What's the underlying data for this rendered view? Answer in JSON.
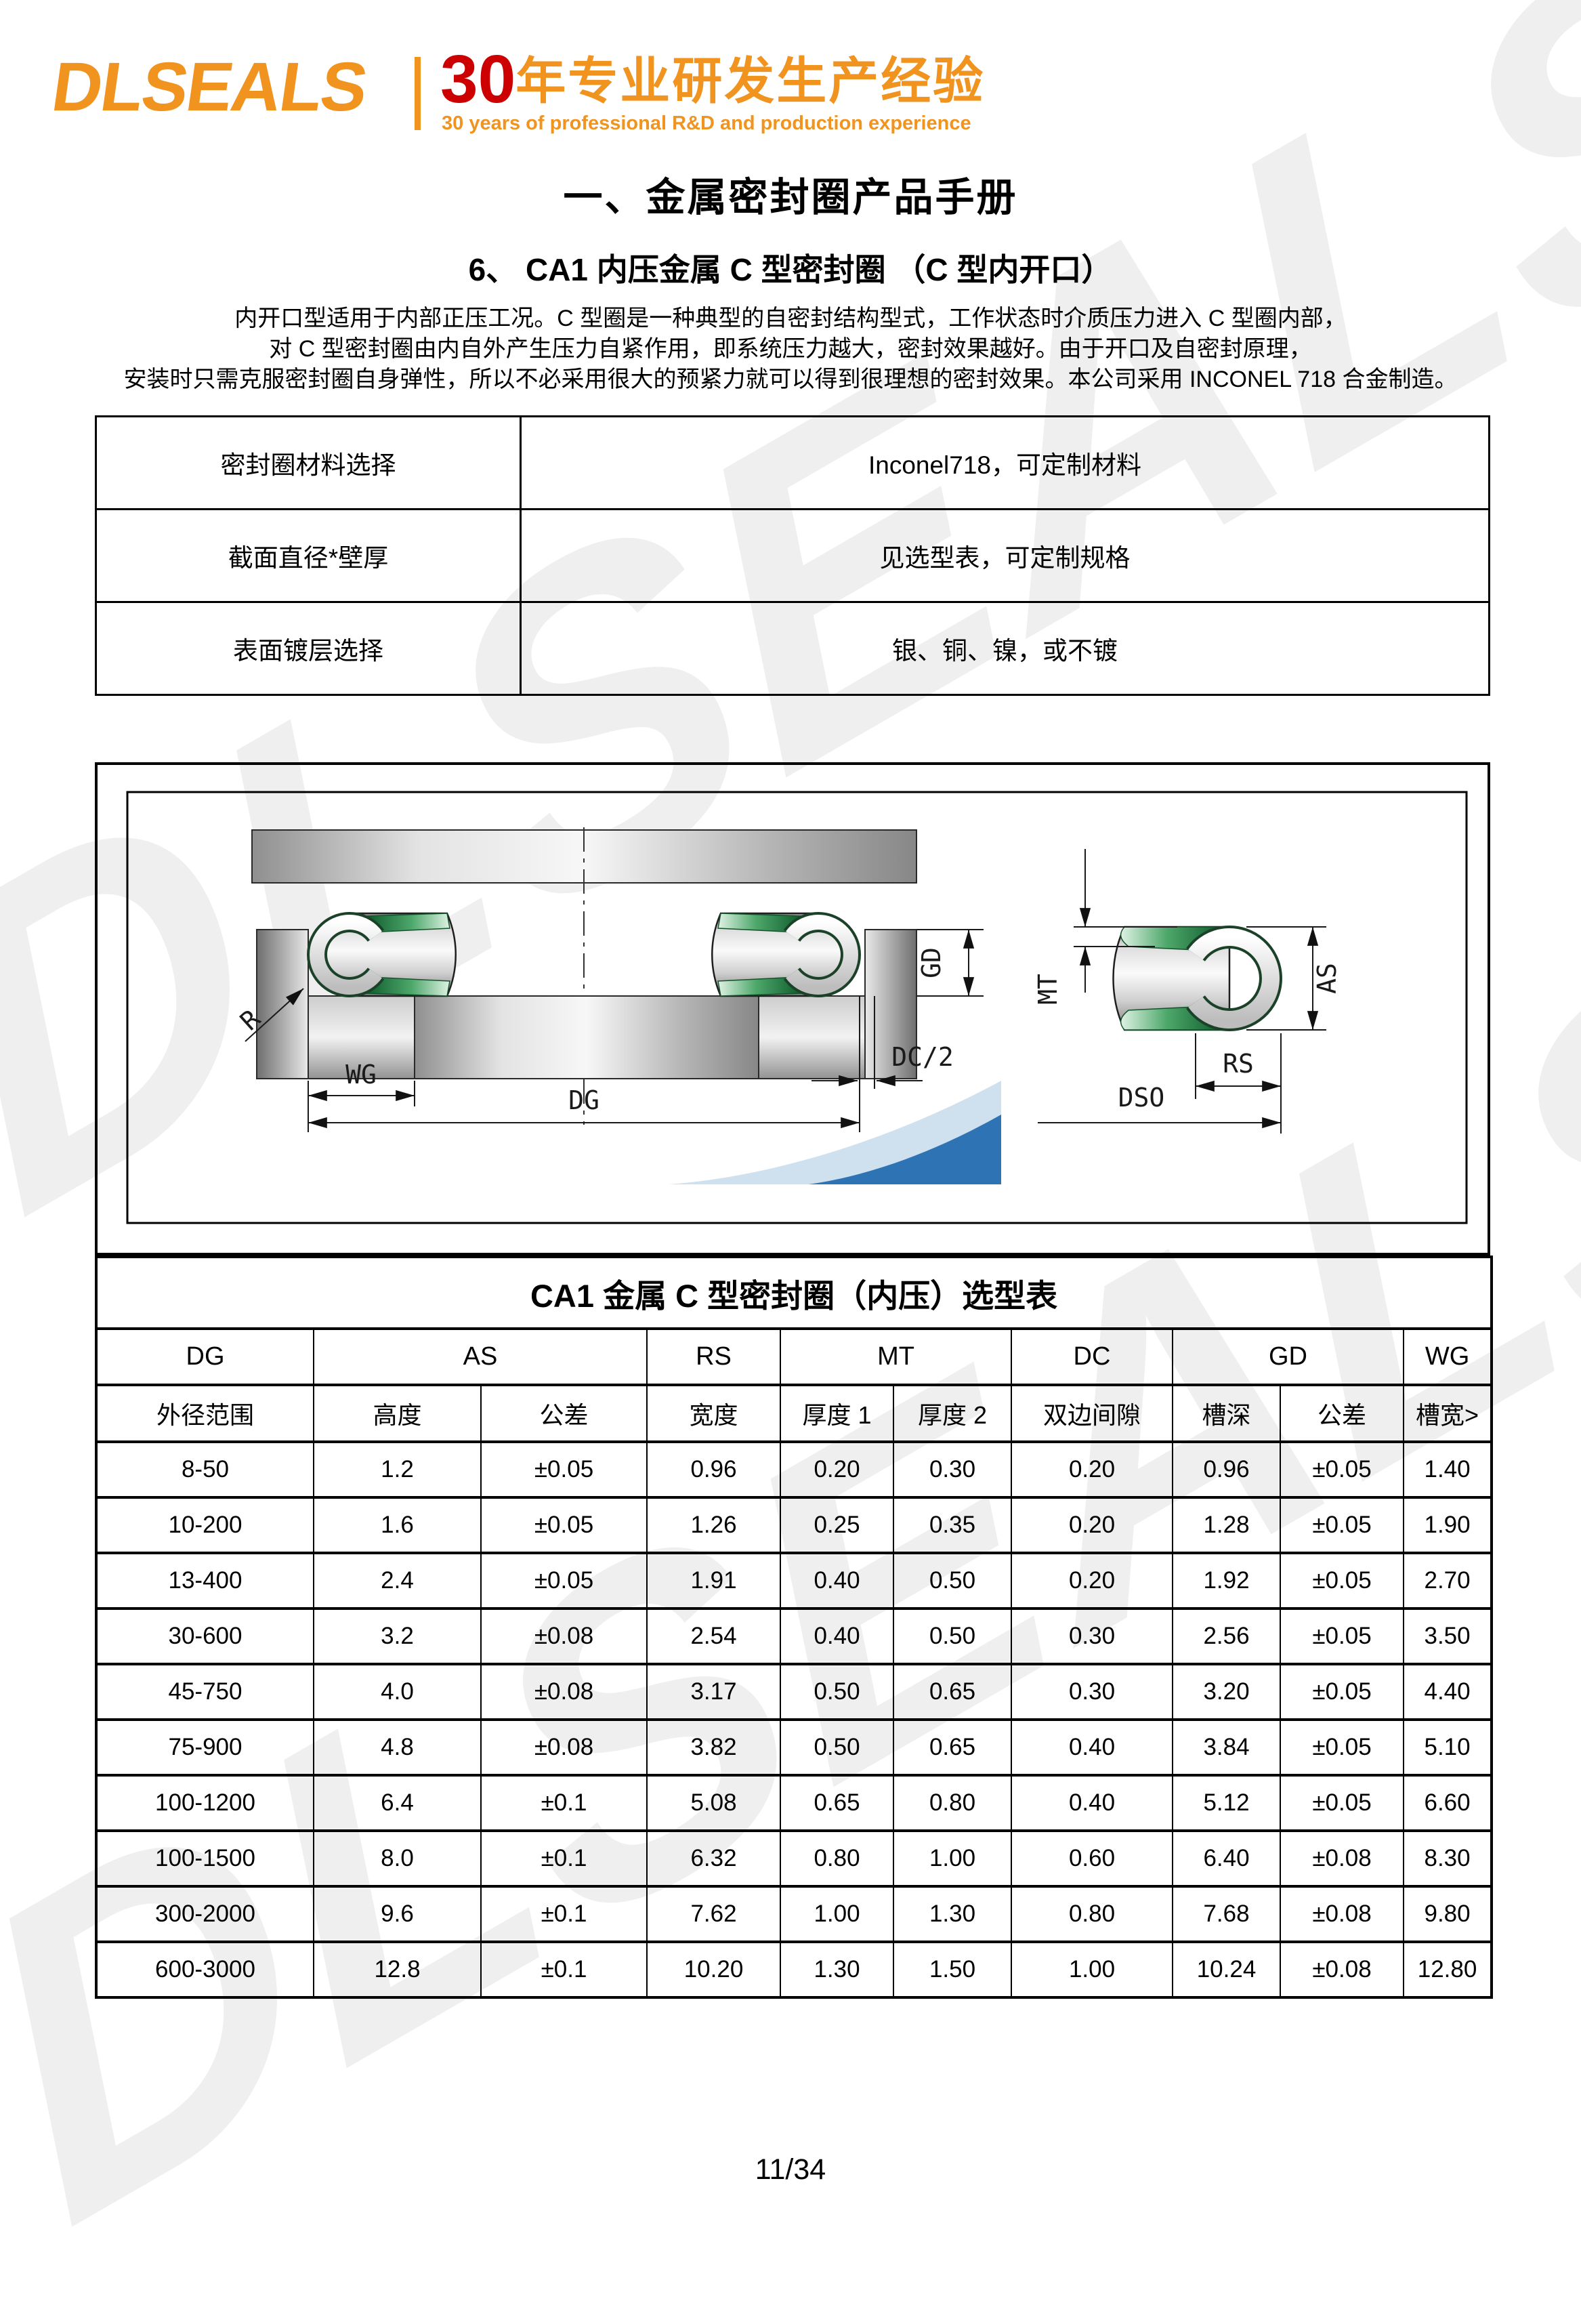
{
  "watermark": {
    "text": "DLSEALS"
  },
  "header": {
    "logo_text": "DLSEALS",
    "tagline_number": "30",
    "tagline_zh": "年专业研发生产经验",
    "tagline_en": "30 years of professional R&D and production experience"
  },
  "title": "一、金属密封圈产品手册",
  "subtitle": "6、 CA1 内压金属 C 型密封圈 （C 型内开口）",
  "intro_lines": [
    "内开口型适用于内部正压工况。C 型圈是一种典型的自密封结构型式，工作状态时介质压力进入 C 型圈内部，",
    "对 C 型密封圈由内自外产生压力自紧作用，即系统压力越大，密封效果越好。由于开口及自密封原理，",
    "安装时只需克服密封圈自身弹性，所以不必采用很大的预紧力就可以得到很理想的密封效果。本公司采用 INCONEL 718 合金制造。"
  ],
  "info_table": {
    "rows": [
      {
        "label": "密封圈材料选择",
        "value": "Inconel718，可定制材料"
      },
      {
        "label": "截面直径*壁厚",
        "value": "见选型表，可定制规格"
      },
      {
        "label": "表面镀层选择",
        "value": "银、铜、镍，或不镀"
      }
    ]
  },
  "diagram": {
    "labels": {
      "r": "R",
      "wg": "WG",
      "dg": "DG",
      "dc_half": "DC/2",
      "gd": "GD",
      "mt": "MT",
      "as": "AS",
      "rs": "RS",
      "dso": "DSO"
    },
    "colors": {
      "green_dark": "#156B33",
      "green_light": "#DFF2E4",
      "blue_dark": "#2E74B5",
      "blue_light": "#CFE0EF",
      "accent_orange": "#F0931F",
      "accent_red": "#CC0000"
    }
  },
  "selection_table": {
    "title": "CA1 金属 C 型密封圈（内压）选型表",
    "group_headers": [
      {
        "label": "DG",
        "span": 1
      },
      {
        "label": "AS",
        "span": 2
      },
      {
        "label": "RS",
        "span": 1
      },
      {
        "label": "MT",
        "span": 2
      },
      {
        "label": "DC",
        "span": 1
      },
      {
        "label": "GD",
        "span": 2
      },
      {
        "label": "WG",
        "span": 1
      }
    ],
    "sub_headers": [
      "外径范围",
      "高度",
      "公差",
      "宽度",
      "厚度 1",
      "厚度 2",
      "双边间隙",
      "槽深",
      "公差",
      "槽宽>"
    ],
    "rows": [
      [
        "8-50",
        "1.2",
        "±0.05",
        "0.96",
        "0.20",
        "0.30",
        "0.20",
        "0.96",
        "±0.05",
        "1.40"
      ],
      [
        "10-200",
        "1.6",
        "±0.05",
        "1.26",
        "0.25",
        "0.35",
        "0.20",
        "1.28",
        "±0.05",
        "1.90"
      ],
      [
        "13-400",
        "2.4",
        "±0.05",
        "1.91",
        "0.40",
        "0.50",
        "0.20",
        "1.92",
        "±0.05",
        "2.70"
      ],
      [
        "30-600",
        "3.2",
        "±0.08",
        "2.54",
        "0.40",
        "0.50",
        "0.30",
        "2.56",
        "±0.05",
        "3.50"
      ],
      [
        "45-750",
        "4.0",
        "±0.08",
        "3.17",
        "0.50",
        "0.65",
        "0.30",
        "3.20",
        "±0.05",
        "4.40"
      ],
      [
        "75-900",
        "4.8",
        "±0.08",
        "3.82",
        "0.50",
        "0.65",
        "0.40",
        "3.84",
        "±0.05",
        "5.10"
      ],
      [
        "100-1200",
        "6.4",
        "±0.1",
        "5.08",
        "0.65",
        "0.80",
        "0.40",
        "5.12",
        "±0.05",
        "6.60"
      ],
      [
        "100-1500",
        "8.0",
        "±0.1",
        "6.32",
        "0.80",
        "1.00",
        "0.60",
        "6.40",
        "±0.08",
        "8.30"
      ],
      [
        "300-2000",
        "9.6",
        "±0.1",
        "7.62",
        "1.00",
        "1.30",
        "0.80",
        "7.68",
        "±0.08",
        "9.80"
      ],
      [
        "600-3000",
        "12.8",
        "±0.1",
        "10.20",
        "1.30",
        "1.50",
        "1.00",
        "10.24",
        "±0.08",
        "12.80"
      ]
    ]
  },
  "page": {
    "page_number": "11/34"
  }
}
